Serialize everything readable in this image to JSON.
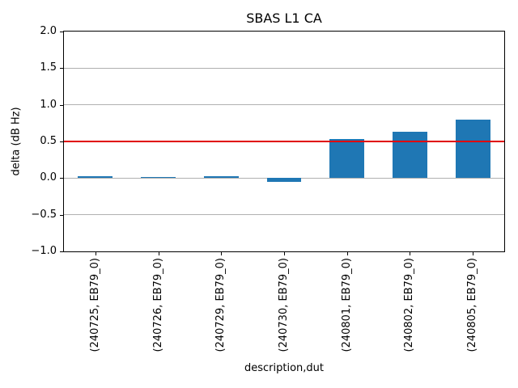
{
  "chart_data": {
    "type": "bar",
    "title": "SBAS L1 CA",
    "xlabel": "description,dut",
    "ylabel": "delta (dB Hz)",
    "categories": [
      "(240725, EB79_0)",
      "(240726, EB79_0)",
      "(240729, EB79_0)",
      "(240730, EB79_0)",
      "(240801, EB79_0)",
      "(240802, EB79_0)",
      "(240805, EB79_0)"
    ],
    "values": [
      0.03,
      0.02,
      0.03,
      -0.05,
      0.53,
      0.63,
      0.8
    ],
    "ylim": [
      -1.0,
      2.0
    ],
    "yticks": [
      -1.0,
      -0.5,
      0.0,
      0.5,
      1.0,
      1.5,
      2.0
    ],
    "grid": true,
    "legend": null,
    "bar_color": "#1f77b4",
    "grid_color": "#b0b0b0",
    "reference_line": {
      "y": 0.5,
      "color": "#e00000"
    }
  }
}
